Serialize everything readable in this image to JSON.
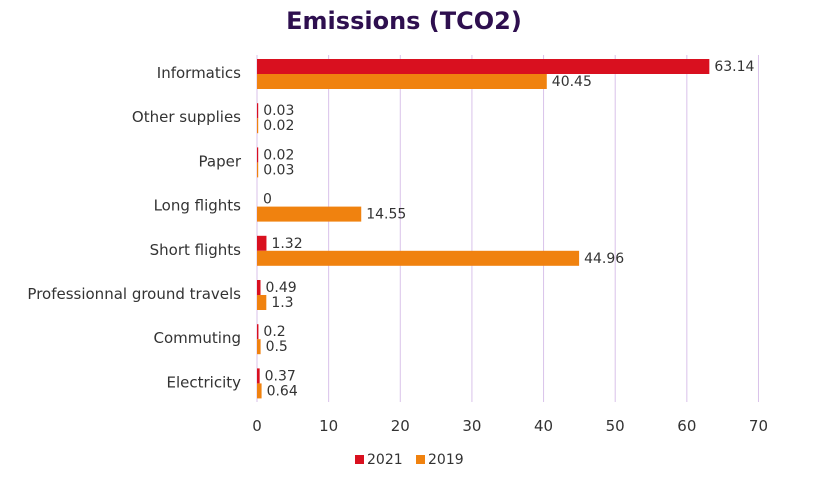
{
  "chart_data": {
    "type": "bar",
    "orientation": "horizontal",
    "title": "Emissions (TCO2)",
    "xlabel": "",
    "ylabel": "",
    "categories": [
      "Informatics",
      "Other supplies",
      "Paper",
      "Long flights",
      "Short flights",
      "Professionnal ground travels",
      "Commuting",
      "Electricity"
    ],
    "series": [
      {
        "name": "2021",
        "color": "#d9101f",
        "values": [
          63.14,
          0.03,
          0.02,
          0,
          1.32,
          0.49,
          0.2,
          0.37
        ],
        "labels": [
          "63.14",
          "0.03",
          "0.02",
          "0",
          "1.32",
          "0.49",
          "0.2",
          "0.37"
        ]
      },
      {
        "name": "2019",
        "color": "#f0820f",
        "values": [
          40.45,
          0.02,
          0.03,
          14.55,
          44.96,
          1.3,
          0.5,
          0.64
        ],
        "labels": [
          "40.45",
          "0.02",
          "0.03",
          "14.55",
          "44.96",
          "1.3",
          "0.5",
          "0.64"
        ]
      }
    ],
    "xlim": [
      0,
      70
    ],
    "ticks": [
      "0",
      "10",
      "20",
      "30",
      "40",
      "50",
      "60",
      "70"
    ],
    "grid": true,
    "gridColor": "#d9c2ea",
    "legend": "bottom"
  }
}
